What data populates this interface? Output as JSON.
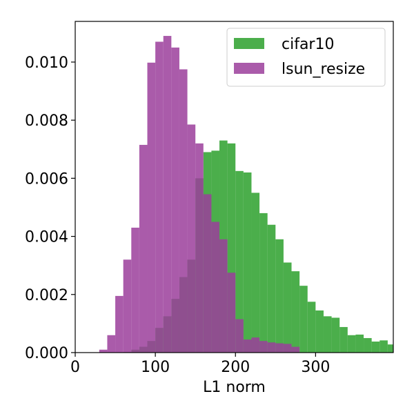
{
  "chart_data": {
    "type": "histogram",
    "xlabel": "L1 norm",
    "ylabel": "",
    "title": "",
    "xlim": [
      0,
      397
    ],
    "ylim": [
      0,
      0.0114
    ],
    "grid": false,
    "legend_position": "top-right",
    "x_ticks": [
      "0",
      "100",
      "200",
      "300"
    ],
    "x_tick_values": [
      0,
      100,
      200,
      300
    ],
    "y_ticks": [
      "0.000",
      "0.002",
      "0.004",
      "0.006",
      "0.008",
      "0.010"
    ],
    "y_tick_values": [
      0,
      0.002,
      0.004,
      0.006,
      0.008,
      0.01
    ],
    "bin_width": 10,
    "series": [
      {
        "name": "cifar10",
        "color": "#2ca02c",
        "bin_start": [
          60,
          70,
          80,
          90,
          100,
          110,
          120,
          130,
          140,
          150,
          160,
          170,
          180,
          190,
          200,
          210,
          220,
          230,
          240,
          250,
          260,
          270,
          280,
          290,
          300,
          310,
          320,
          330,
          340,
          350,
          360,
          370,
          380,
          390
        ],
        "values": [
          2e-05,
          0.0001,
          0.0002,
          0.0004,
          0.00085,
          0.00125,
          0.00185,
          0.0026,
          0.0032,
          0.006,
          0.0069,
          0.00695,
          0.0073,
          0.0072,
          0.00625,
          0.0062,
          0.0055,
          0.0048,
          0.0044,
          0.0039,
          0.0031,
          0.0028,
          0.0023,
          0.00175,
          0.00145,
          0.00125,
          0.0012,
          0.00088,
          0.0006,
          0.00062,
          0.0005,
          0.00038,
          0.00042,
          0.00028
        ]
      },
      {
        "name": "lsun_resize",
        "color": "#9b3e9b",
        "bin_start": [
          30,
          40,
          50,
          60,
          70,
          80,
          90,
          100,
          110,
          120,
          130,
          140,
          150,
          160,
          170,
          180,
          190,
          200,
          210,
          220,
          230,
          240,
          250,
          260,
          270
        ],
        "values": [
          0.0001,
          0.0006,
          0.00195,
          0.0032,
          0.0043,
          0.00715,
          0.00998,
          0.0107,
          0.0109,
          0.0105,
          0.00975,
          0.00785,
          0.0072,
          0.00545,
          0.0045,
          0.0039,
          0.00275,
          0.00115,
          0.00045,
          0.00052,
          0.0004,
          0.00035,
          0.00032,
          0.0003,
          0.0002
        ]
      }
    ]
  }
}
